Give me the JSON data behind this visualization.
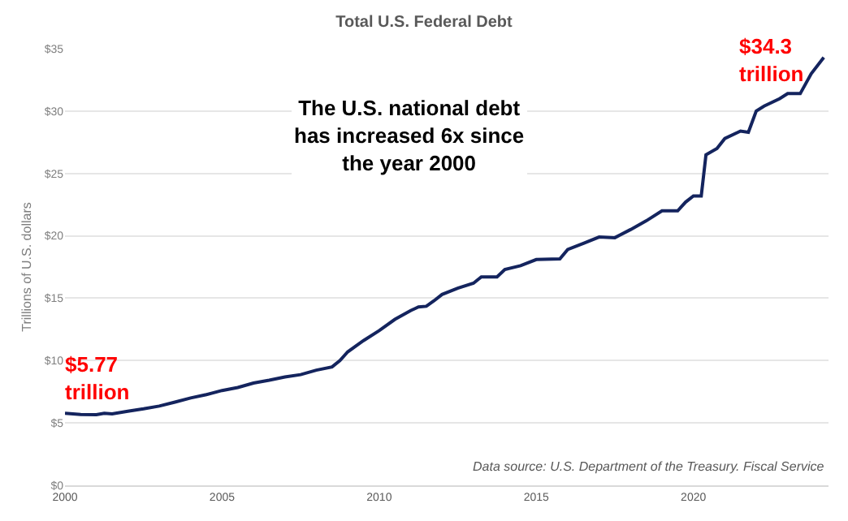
{
  "chart_data": {
    "type": "line",
    "title": "Total U.S. Federal Debt",
    "ylabel": "Trillions of U.S. dollars",
    "x": [
      2000.0,
      2000.5,
      2001.0,
      2001.25,
      2001.5,
      2002.0,
      2002.5,
      2003.0,
      2003.5,
      2004.0,
      2004.5,
      2005.0,
      2005.5,
      2006.0,
      2006.5,
      2007.0,
      2007.5,
      2008.0,
      2008.5,
      2008.75,
      2009.0,
      2009.5,
      2010.0,
      2010.5,
      2011.0,
      2011.25,
      2011.5,
      2011.75,
      2012.0,
      2012.5,
      2013.0,
      2013.25,
      2013.75,
      2014.0,
      2014.5,
      2015.0,
      2015.75,
      2016.0,
      2016.5,
      2017.0,
      2017.5,
      2018.0,
      2018.5,
      2019.0,
      2019.5,
      2019.75,
      2020.0,
      2020.25,
      2020.4,
      2020.75,
      2021.0,
      2021.5,
      2021.75,
      2022.0,
      2022.25,
      2022.75,
      2023.0,
      2023.4,
      2023.75,
      2024.15
    ],
    "series": [
      {
        "color": "#14245e",
        "values": [
          5.77,
          5.68,
          5.66,
          5.77,
          5.73,
          5.94,
          6.13,
          6.35,
          6.67,
          7.0,
          7.27,
          7.6,
          7.84,
          8.2,
          8.42,
          8.68,
          8.87,
          9.23,
          9.49,
          10.0,
          10.7,
          11.6,
          12.4,
          13.3,
          14.0,
          14.3,
          14.35,
          14.8,
          15.3,
          15.8,
          16.2,
          16.7,
          16.7,
          17.3,
          17.6,
          18.1,
          18.15,
          18.9,
          19.4,
          19.9,
          19.85,
          20.5,
          21.2,
          22.0,
          22.0,
          22.7,
          23.2,
          23.2,
          26.5,
          27.0,
          27.8,
          28.4,
          28.3,
          30.0,
          30.4,
          31.0,
          31.4,
          31.4,
          33.0,
          34.3
        ]
      }
    ],
    "xlim": [
      2000,
      2024.3
    ],
    "xticks": [
      2000,
      2005,
      2010,
      2015,
      2020
    ],
    "ylim": [
      0,
      35
    ],
    "yticks": [
      {
        "value": 0,
        "label": "$0"
      },
      {
        "value": 5,
        "label": "$5"
      },
      {
        "value": 10,
        "label": "$10"
      },
      {
        "value": 15,
        "label": "$15"
      },
      {
        "value": 20,
        "label": "$20"
      },
      {
        "value": 25,
        "label": "$25"
      },
      {
        "value": 30,
        "label": "$30"
      },
      {
        "value": 35,
        "label": "$35"
      }
    ],
    "grid": "y",
    "marker": "none",
    "line_style": "solid",
    "annotations": [
      {
        "text": "$5.77\ntrillion",
        "x": 2000.0,
        "y": 5.77
      },
      {
        "text": "$34.3\ntrillion",
        "x": 2024.15,
        "y": 34.3
      },
      "The U.S. national debt\nhas increased 6x since\nthe year 2000",
      "Data source: U.S. Department of the Treasury. Fiscal Service"
    ]
  }
}
